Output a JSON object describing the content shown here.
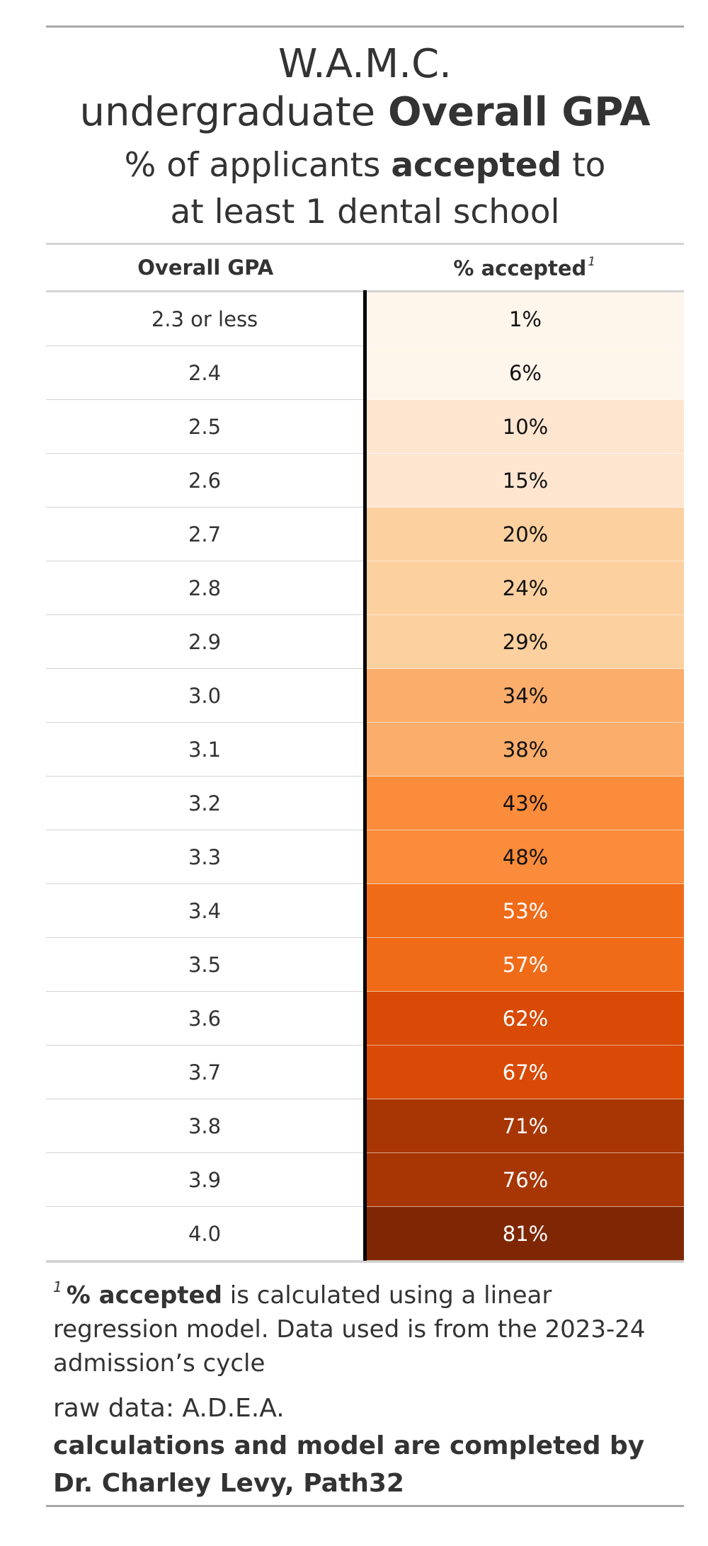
{
  "chart_data": {
    "type": "table",
    "title": {
      "line1": "W.A.M.C.",
      "line2_prefix": "undergraduate ",
      "line2_bold": "Overall GPA"
    },
    "subtitle": {
      "prefix": "% of applicants ",
      "bold": "accepted",
      "suffix": " to",
      "line2": "at least 1 dental school"
    },
    "columns": [
      {
        "label": "Overall GPA"
      },
      {
        "label": "% accepted",
        "footnote_mark": "1"
      }
    ],
    "rows": [
      {
        "gpa": "2.3 or less",
        "accepted": "1%",
        "value": 1
      },
      {
        "gpa": "2.4",
        "accepted": "6%",
        "value": 6
      },
      {
        "gpa": "2.5",
        "accepted": "10%",
        "value": 10
      },
      {
        "gpa": "2.6",
        "accepted": "15%",
        "value": 15
      },
      {
        "gpa": "2.7",
        "accepted": "20%",
        "value": 20
      },
      {
        "gpa": "2.8",
        "accepted": "24%",
        "value": 24
      },
      {
        "gpa": "2.9",
        "accepted": "29%",
        "value": 29
      },
      {
        "gpa": "3.0",
        "accepted": "34%",
        "value": 34
      },
      {
        "gpa": "3.1",
        "accepted": "38%",
        "value": 38
      },
      {
        "gpa": "3.2",
        "accepted": "43%",
        "value": 43
      },
      {
        "gpa": "3.3",
        "accepted": "48%",
        "value": 48
      },
      {
        "gpa": "3.4",
        "accepted": "53%",
        "value": 53
      },
      {
        "gpa": "3.5",
        "accepted": "57%",
        "value": 57
      },
      {
        "gpa": "3.6",
        "accepted": "62%",
        "value": 62
      },
      {
        "gpa": "3.7",
        "accepted": "67%",
        "value": 67
      },
      {
        "gpa": "3.8",
        "accepted": "71%",
        "value": 71
      },
      {
        "gpa": "3.9",
        "accepted": "76%",
        "value": 76
      },
      {
        "gpa": "4.0",
        "accepted": "81%",
        "value": 81
      }
    ],
    "color_scale": {
      "breaks": [
        0,
        10,
        20,
        30,
        40,
        50,
        60,
        70,
        80
      ],
      "fills": [
        "#fef5eb",
        "#fde5d0",
        "#fcd09f",
        "#fbad6b",
        "#fb8c3c",
        "#f06b18",
        "#d84a05",
        "#a83604",
        "#7f2704"
      ],
      "light_text": "#ffffff",
      "dark_text": "#111111",
      "light_text_from": 50
    },
    "footnote": {
      "mark": "1",
      "bold": "% accepted",
      "text": " is calculated using a linear regression model. Data used is from the 2023-24 admission’s cycle"
    },
    "source": "raw data: A.D.E.A.",
    "credit_line1": "calculations and model are completed by",
    "credit_line2": "Dr. Charley Levy, Path32"
  }
}
